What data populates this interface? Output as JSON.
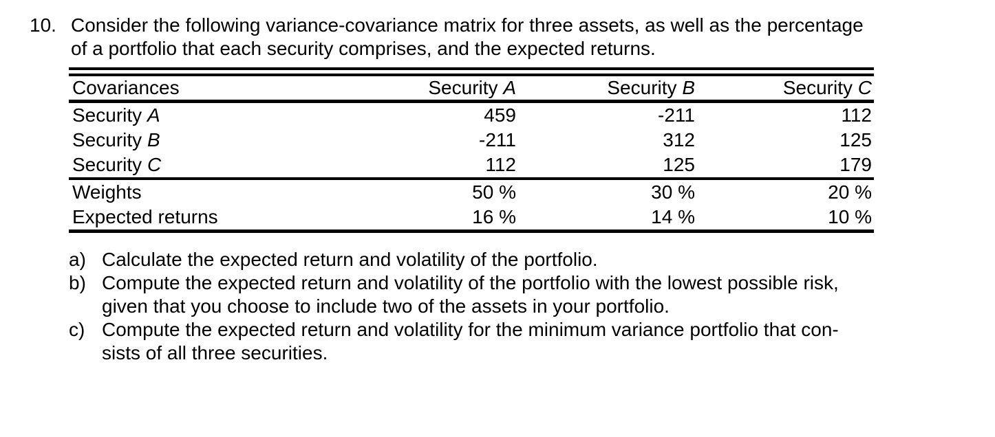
{
  "document": {
    "problem_number": "10.",
    "intro_lines": [
      "Consider the following variance-covariance matrix for three assets, as well as the percentage",
      "of a portfolio that each security comprises, and the expected returns."
    ],
    "table": {
      "corner_header": "Covariances",
      "columns": [
        {
          "prefix": "Security ",
          "letter": "A"
        },
        {
          "prefix": "Security ",
          "letter": "B"
        },
        {
          "prefix": "Security ",
          "letter": "C"
        }
      ],
      "covariance_rows": [
        {
          "prefix": "Security ",
          "letter": "A",
          "values": [
            "459",
            "-211",
            "112"
          ]
        },
        {
          "prefix": "Security ",
          "letter": "B",
          "values": [
            "-211",
            "312",
            "125"
          ]
        },
        {
          "prefix": "Security ",
          "letter": "C",
          "values": [
            "112",
            "125",
            "179"
          ]
        }
      ],
      "weights_row": {
        "label": "Weights",
        "values": [
          "50 %",
          "30 %",
          "20 %"
        ]
      },
      "expected_returns_row": {
        "label": "Expected returns",
        "values": [
          "16 %",
          "14 %",
          "10 %"
        ]
      }
    },
    "questions": [
      {
        "label": "a)",
        "lines": [
          "Calculate the expected return and volatility of the portfolio."
        ]
      },
      {
        "label": "b)",
        "lines": [
          "Compute the expected return and volatility of the portfolio with the lowest possible risk,",
          "given that you choose to include two of the assets in your portfolio."
        ]
      },
      {
        "label": "c)",
        "lines": [
          "Compute the expected return and volatility for the minimum variance portfolio that con-",
          "sists of all three securities."
        ]
      }
    ],
    "colors": {
      "text": "#000000",
      "background": "#ffffff"
    }
  }
}
